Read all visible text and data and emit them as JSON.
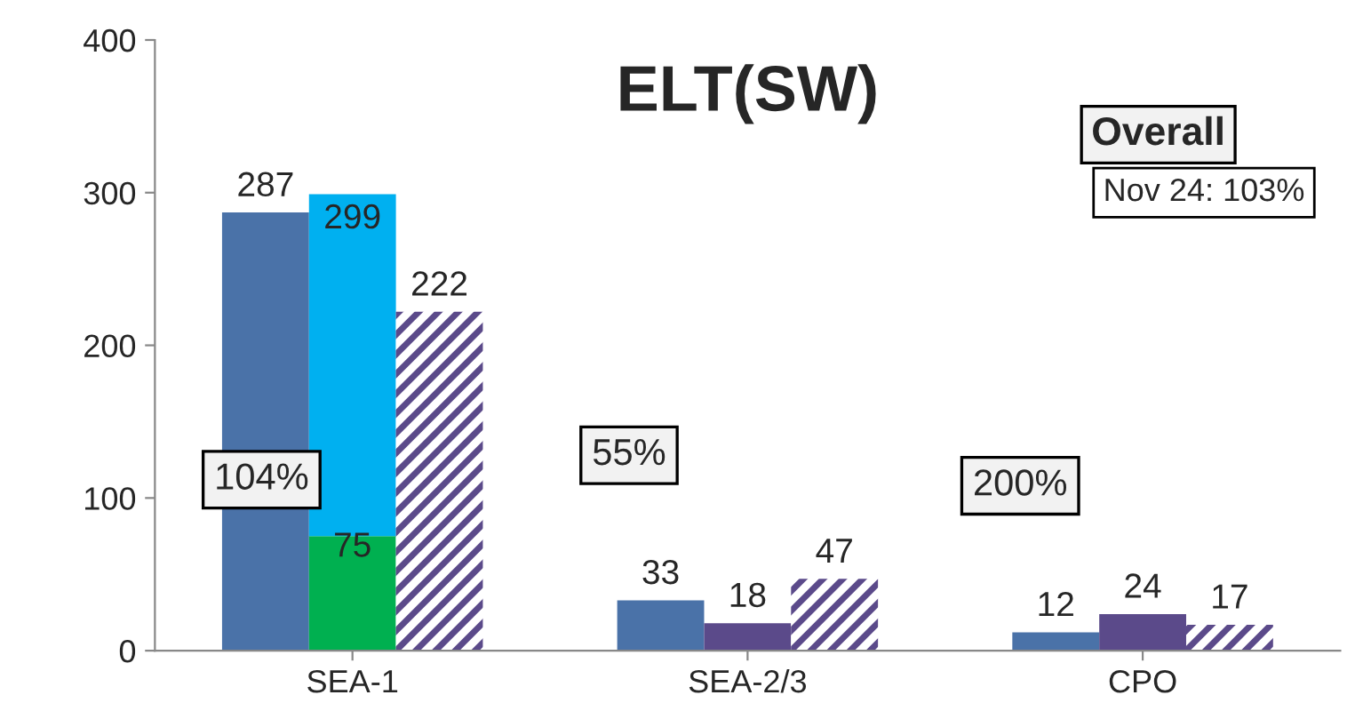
{
  "chart_data": {
    "type": "bar",
    "title": "ELT(SW)",
    "categories": [
      "SEA-1",
      "SEA-2/3",
      "CPO"
    ],
    "series": [
      {
        "color": "#4a72a8",
        "values": [
          287,
          33,
          12
        ]
      },
      {
        "colors": [
          "#00b050",
          "#5b4a8a",
          "#5b4a8a"
        ],
        "values": [
          75,
          18,
          24
        ]
      },
      {
        "color": "#00b0f0",
        "base": [
          75,
          null,
          null
        ],
        "values": [
          224,
          null,
          null
        ],
        "value_labels": [
          "299",
          null,
          null
        ]
      },
      {
        "color": "#5b4a8a",
        "values": [
          222,
          47,
          17
        ]
      }
    ],
    "data_labels": true,
    "ylim": [
      0,
      400
    ],
    "yticks": [
      0,
      100,
      200,
      300,
      400
    ],
    "grid": false,
    "legend": false,
    "annotations": [
      "104%",
      "55%",
      "200%",
      "Overall",
      "Nov 24: 103%"
    ]
  }
}
